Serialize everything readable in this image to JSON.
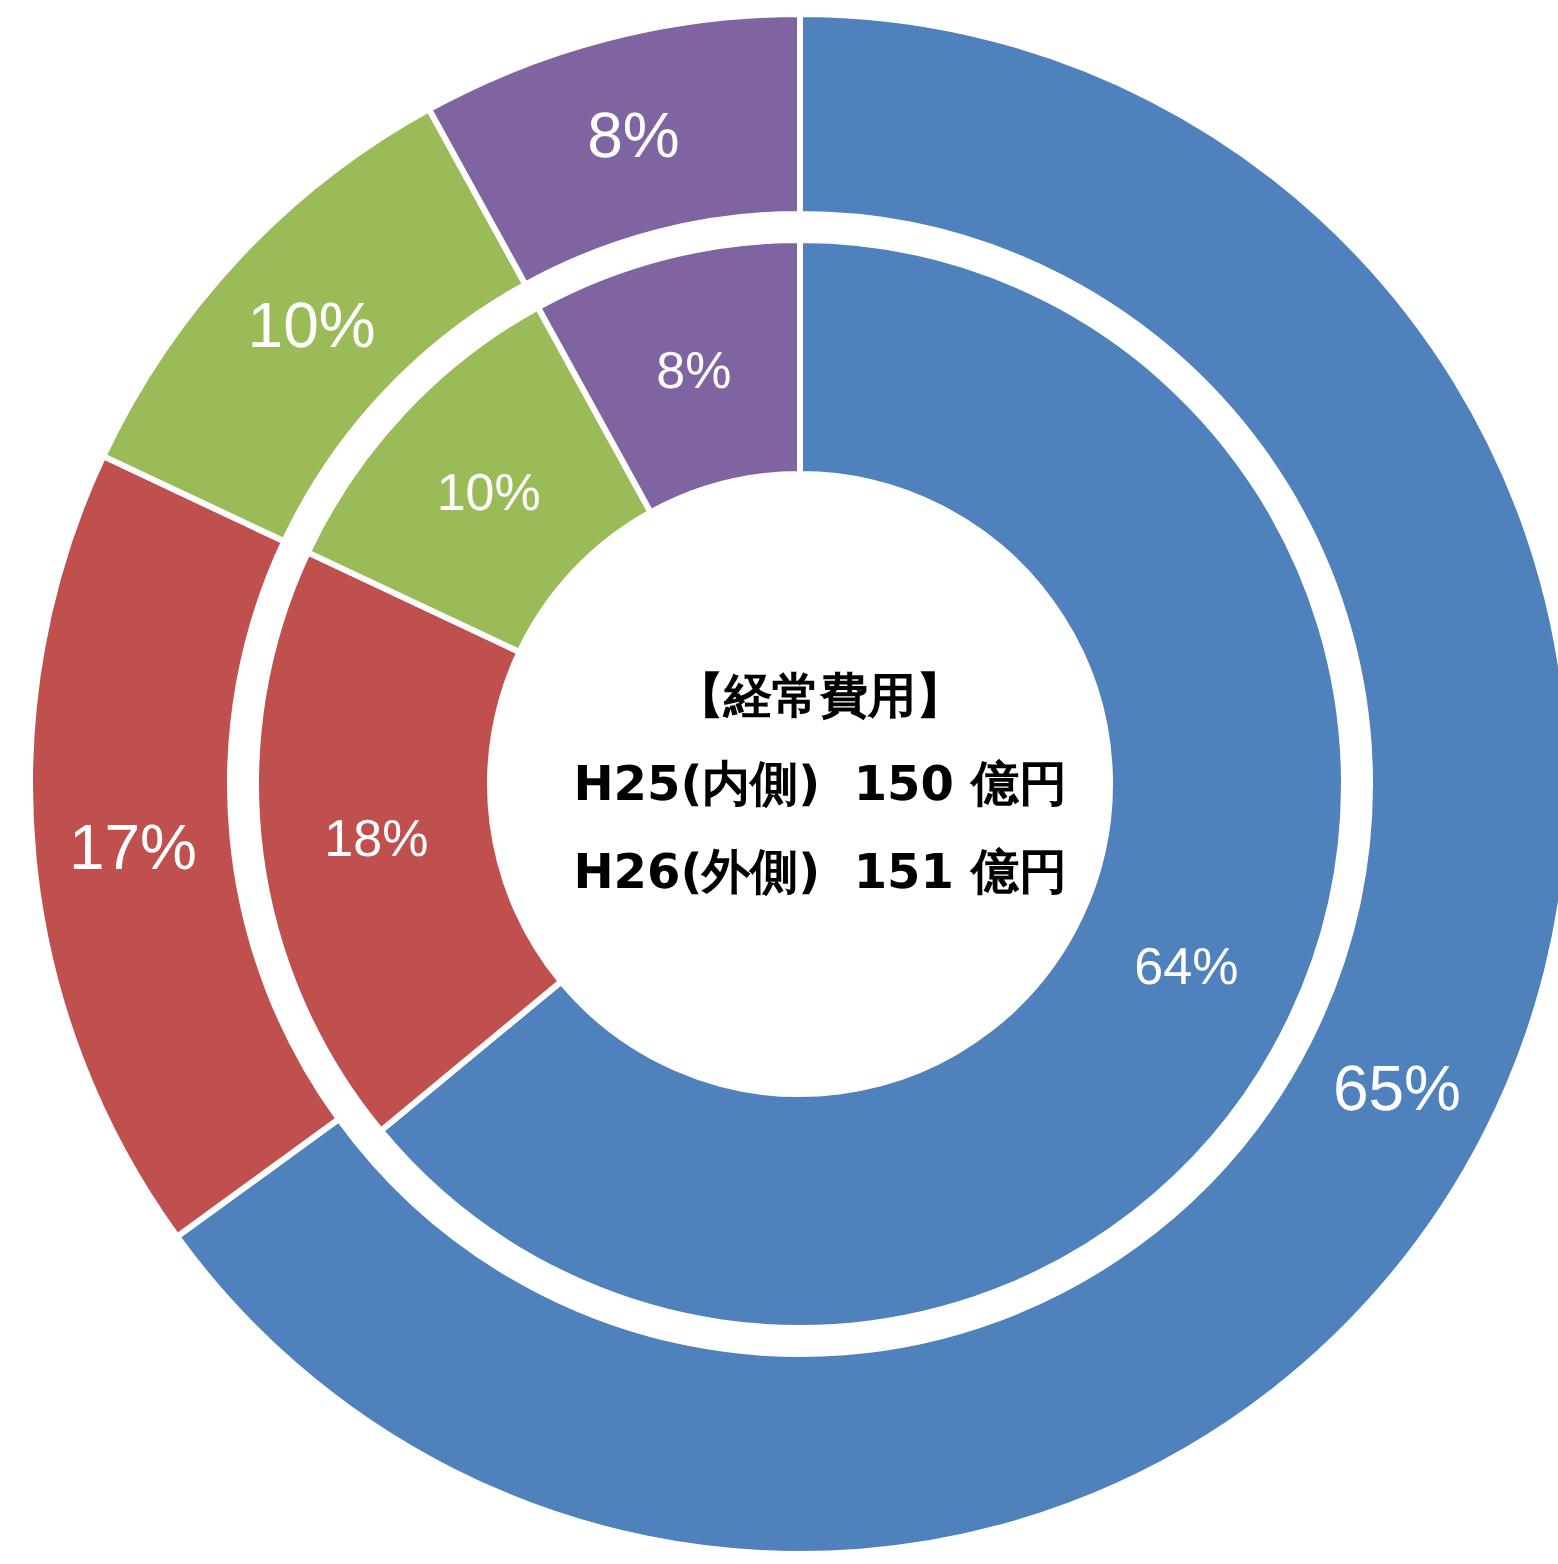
{
  "chart_data": [
    {
      "type": "donut",
      "categories": [
        null,
        null,
        null,
        null
      ],
      "values": [
        64,
        18,
        10,
        8
      ],
      "colors": [
        "#4f81bd",
        "#c0504d",
        "#9bbb59",
        "#8064a2"
      ],
      "value_labels": [
        "64%",
        "18%",
        "10%",
        "8%"
      ],
      "annotations": [
        "【経常費用】",
        "H25(内側)  150 億円",
        "H26(外側)  151 億円"
      ]
    },
    {
      "type": "donut",
      "categories": [
        null,
        null,
        null,
        null
      ],
      "values": [
        65,
        17,
        10,
        8
      ],
      "colors": [
        "#4f81bd",
        "#c0504d",
        "#9bbb59",
        "#8064a2"
      ],
      "value_labels": [
        "65%",
        "17%",
        "10%",
        "8%"
      ]
    }
  ]
}
